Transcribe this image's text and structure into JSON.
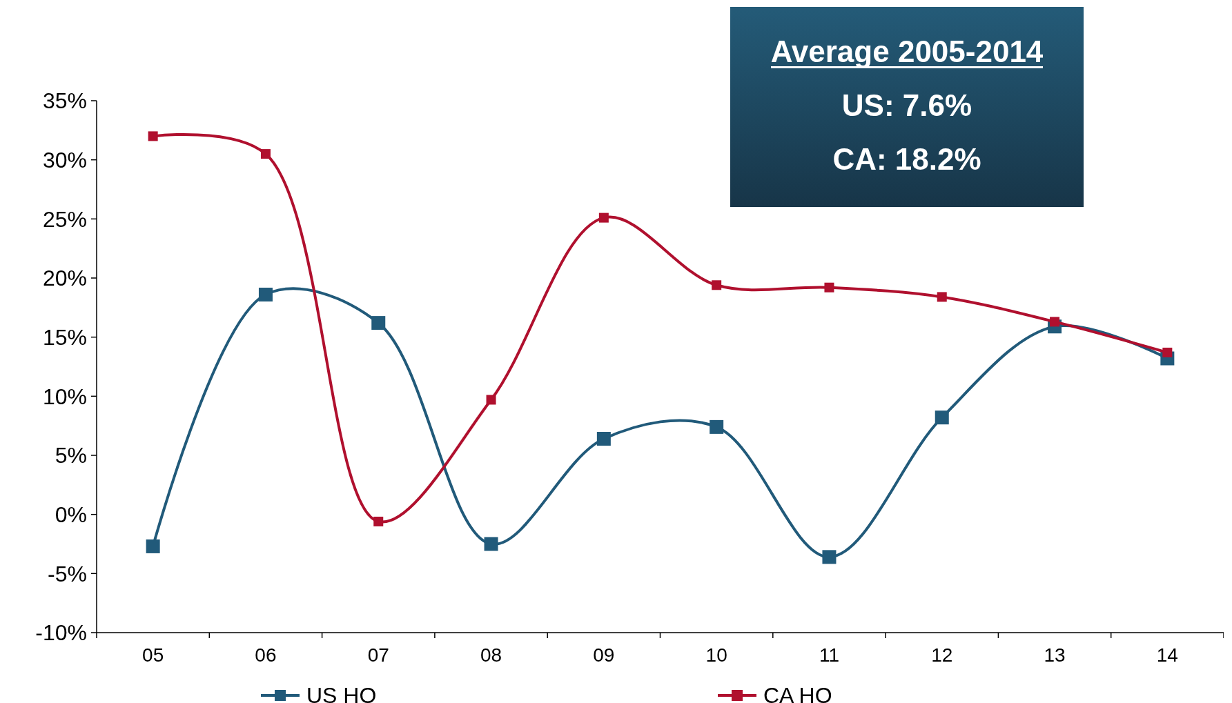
{
  "chart_data": {
    "type": "line",
    "categories": [
      "05",
      "06",
      "07",
      "08",
      "09",
      "10",
      "11",
      "12",
      "13",
      "14"
    ],
    "series": [
      {
        "name": "US HO",
        "color": "#215a7a",
        "values": [
          -2.7,
          18.6,
          16.2,
          -2.5,
          6.4,
          7.4,
          -3.6,
          8.2,
          15.9,
          13.2
        ]
      },
      {
        "name": "CA HO",
        "color": "#b0102e",
        "values": [
          32.0,
          30.5,
          -0.6,
          9.7,
          25.1,
          19.4,
          19.2,
          18.4,
          16.3,
          13.7
        ]
      }
    ],
    "ylim": [
      -10,
      35
    ],
    "yticks": [
      {
        "value": -10,
        "label": "-10%"
      },
      {
        "value": -5,
        "label": "-5%"
      },
      {
        "value": 0,
        "label": "0%"
      },
      {
        "value": 5,
        "label": "5%"
      },
      {
        "value": 10,
        "label": "10%"
      },
      {
        "value": 15,
        "label": "15%"
      },
      {
        "value": 20,
        "label": "20%"
      },
      {
        "value": 25,
        "label": "25%"
      },
      {
        "value": 30,
        "label": "30%"
      },
      {
        "value": 35,
        "label": "35%"
      }
    ],
    "annotations": [
      "Average 2005-2014",
      "US: 7.6%",
      "CA: 18.2%"
    ],
    "legend": "bottom",
    "marker": "square",
    "line_style": "solid",
    "grid": false
  }
}
